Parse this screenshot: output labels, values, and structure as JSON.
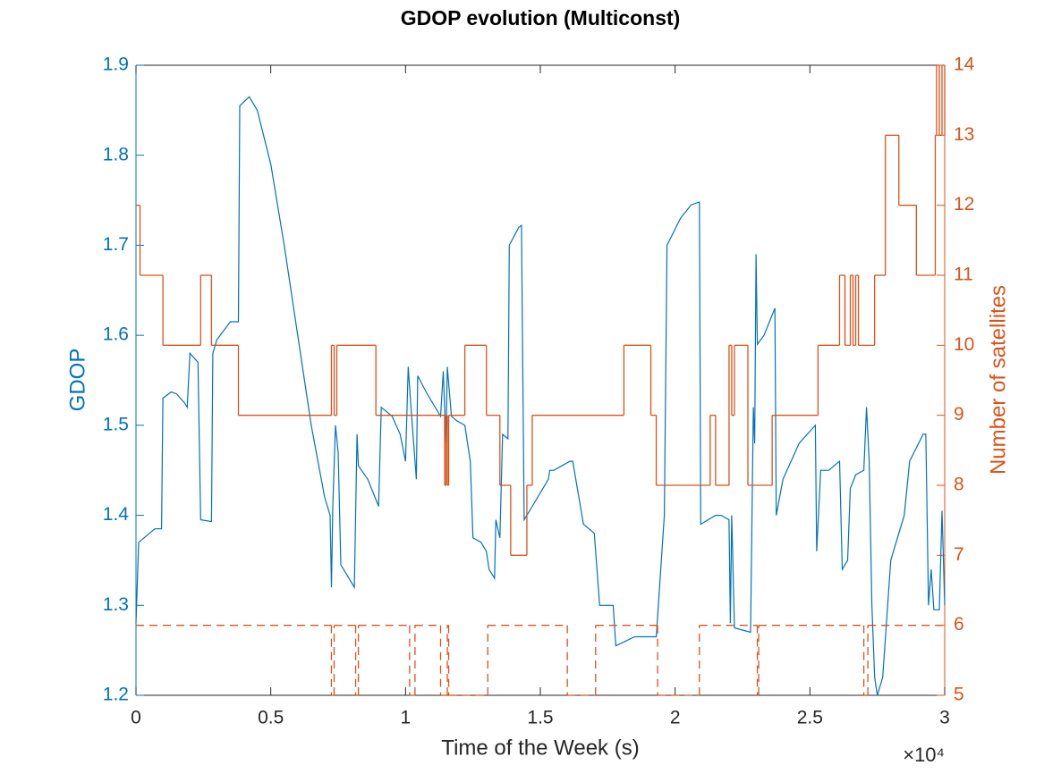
{
  "chart_data": {
    "type": "line",
    "title": "GDOP evolution (Multiconst)",
    "x_label": "Time of the Week (s)",
    "y_label": "GDOP",
    "y2_label": "Number of satellites",
    "x_exponent_label": "×10⁴",
    "xlim": [
      0,
      30000
    ],
    "xticks": [
      0,
      {
        "value": 5000,
        "label": "0.5"
      },
      {
        "value": 10000,
        "label": "1"
      },
      {
        "value": 15000,
        "label": "1.5"
      },
      {
        "value": 20000,
        "label": "2"
      },
      {
        "value": 25000,
        "label": "2.5"
      },
      {
        "value": 30000,
        "label": "3"
      }
    ],
    "ylim": [
      1.2,
      1.9
    ],
    "yticks": [
      1.2,
      1.3,
      1.4,
      1.5,
      1.6,
      1.7,
      1.8,
      1.9
    ],
    "y2lim": [
      5,
      14
    ],
    "y2ticks": [
      5,
      6,
      7,
      8,
      9,
      10,
      11,
      12,
      13,
      14
    ],
    "series": [
      {
        "color": "#0072bd",
        "axis": "y",
        "step": false,
        "linestyle": "solid",
        "x": [
          0,
          100,
          300,
          700,
          950,
          1000,
          1300,
          1500,
          1800,
          1900,
          2000,
          2300,
          2400,
          2800,
          2850,
          3000,
          3500,
          3800,
          3850,
          4200,
          4500,
          5000,
          5500,
          6000,
          6500,
          7000,
          7200,
          7250,
          7300,
          7400,
          7500,
          7600,
          8100,
          8200,
          8250,
          8600,
          9000,
          9100,
          9500,
          9800,
          10000,
          10100,
          10200,
          10400,
          10450,
          10800,
          11000,
          11300,
          11400,
          11500,
          11550,
          11700,
          11900,
          12200,
          12400,
          12500,
          12800,
          13000,
          13100,
          13300,
          13350,
          13500,
          13600,
          13800,
          13850,
          14200,
          14300,
          14400,
          14700,
          15000,
          15300,
          15350,
          15500,
          15800,
          16100,
          16200,
          16600,
          17000,
          17200,
          17700,
          17800,
          18500,
          19300,
          19400,
          19600,
          19700,
          20200,
          20600,
          20900,
          20950,
          21500,
          21700,
          22000,
          22050,
          22100,
          22200,
          22800,
          22900,
          22950,
          23000,
          23050,
          23300,
          23700,
          23750,
          24000,
          24600,
          25200,
          25250,
          25400,
          25700,
          26100,
          26200,
          26400,
          26500,
          26700,
          27000,
          27100,
          27200,
          27300,
          27400,
          27500,
          27700,
          28000,
          28500,
          28700,
          29200,
          29300,
          29400,
          29500,
          29600,
          29800,
          29900,
          30000
        ],
        "values": [
          1.28,
          1.37,
          1.375,
          1.385,
          1.385,
          1.53,
          1.537,
          1.535,
          1.525,
          1.52,
          1.58,
          1.57,
          1.395,
          1.393,
          1.58,
          1.595,
          1.615,
          1.615,
          1.855,
          1.865,
          1.85,
          1.79,
          1.7,
          1.6,
          1.5,
          1.42,
          1.4,
          1.32,
          1.41,
          1.5,
          1.47,
          1.345,
          1.32,
          1.49,
          1.455,
          1.44,
          1.41,
          1.52,
          1.51,
          1.49,
          1.46,
          1.565,
          1.52,
          1.44,
          1.555,
          1.535,
          1.525,
          1.51,
          1.56,
          1.48,
          1.565,
          1.51,
          1.505,
          1.5,
          1.46,
          1.375,
          1.37,
          1.36,
          1.34,
          1.33,
          1.395,
          1.375,
          1.49,
          1.485,
          1.7,
          1.72,
          1.722,
          1.395,
          1.41,
          1.425,
          1.44,
          1.45,
          1.45,
          1.455,
          1.46,
          1.46,
          1.39,
          1.38,
          1.3,
          1.3,
          1.255,
          1.265,
          1.265,
          1.31,
          1.4,
          1.7,
          1.73,
          1.745,
          1.748,
          1.39,
          1.4,
          1.4,
          1.395,
          1.28,
          1.4,
          1.275,
          1.27,
          1.52,
          1.48,
          1.69,
          1.59,
          1.6,
          1.63,
          1.4,
          1.44,
          1.48,
          1.5,
          1.36,
          1.45,
          1.45,
          1.46,
          1.34,
          1.35,
          1.43,
          1.445,
          1.45,
          1.52,
          1.46,
          1.3,
          1.22,
          1.2,
          1.22,
          1.35,
          1.4,
          1.46,
          1.49,
          1.49,
          1.3,
          1.34,
          1.295,
          1.295,
          1.405,
          1.3
        ]
      },
      {
        "color": "#d95319",
        "axis": "y2",
        "step": true,
        "linestyle": "solid",
        "x": [
          0,
          150,
          1000,
          2400,
          2800,
          3800,
          7250,
          7350,
          7450,
          8900,
          11450,
          11500,
          11550,
          11600,
          12200,
          13000,
          13500,
          13900,
          14500,
          14700,
          18100,
          19100,
          19300,
          21300,
          21500,
          22000,
          22100,
          22200,
          22700,
          23600,
          25300,
          26100,
          26300,
          26500,
          26600,
          26700,
          26800,
          27300,
          27400,
          27800,
          28300,
          28950,
          29650,
          29700,
          29800,
          29900,
          30000
        ],
        "values": [
          12,
          11,
          10,
          11,
          10,
          9,
          10,
          9,
          10,
          9,
          8,
          9,
          8,
          9,
          10,
          9,
          8,
          7,
          8,
          9,
          10,
          9,
          8,
          9,
          8,
          10,
          9,
          10,
          8,
          9,
          10,
          11,
          10,
          11,
          10,
          11,
          10,
          10,
          11,
          13,
          12,
          11,
          13,
          14,
          13,
          14,
          13
        ]
      },
      {
        "color": "#d95319",
        "axis": "y2",
        "step": true,
        "linestyle": "dashed",
        "x": [
          0,
          7250,
          7350,
          8150,
          8250,
          10150,
          10350,
          11300,
          11550,
          11600,
          13050,
          16000,
          17050,
          19350,
          20900,
          23050,
          23100,
          27000,
          27150,
          30000
        ],
        "values": [
          6,
          5,
          6,
          5,
          6,
          5,
          6,
          5,
          6,
          5,
          6,
          5,
          6,
          5,
          6,
          5,
          6,
          5,
          6,
          6
        ]
      }
    ]
  }
}
